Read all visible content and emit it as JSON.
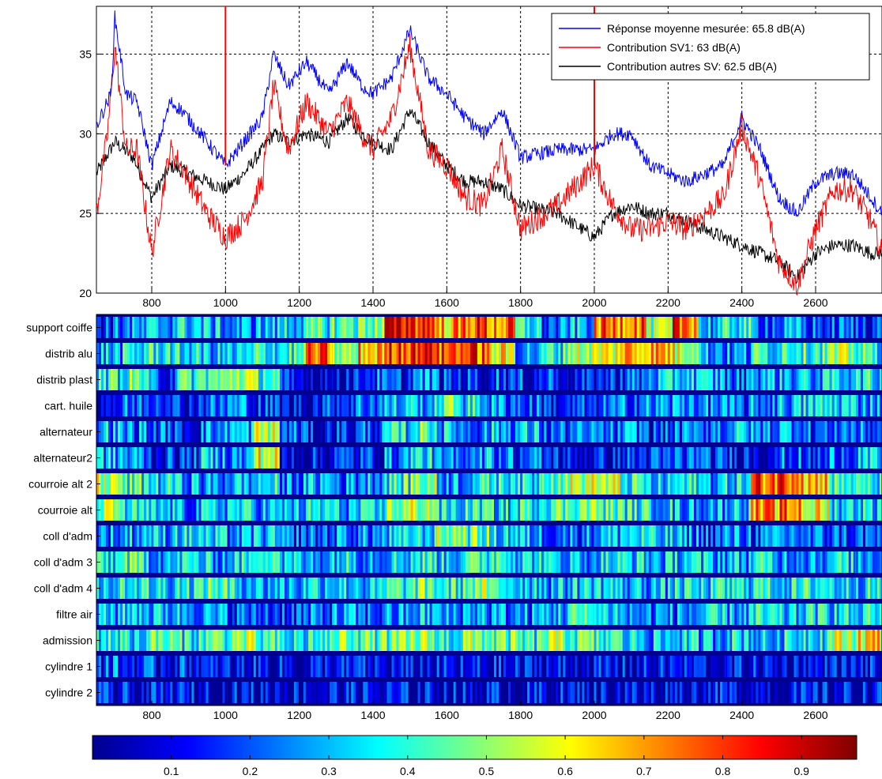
{
  "chart_data": [
    {
      "type": "line",
      "x_range": [
        650,
        2780
      ],
      "ylim": [
        20,
        38
      ],
      "x_ticks": [
        800,
        1000,
        1200,
        1400,
        1600,
        1800,
        2000,
        2200,
        2400,
        2600
      ],
      "y_ticks": [
        20,
        25,
        30,
        35
      ],
      "grid": true,
      "legend_position": "top-right",
      "series": [
        {
          "name": "Réponse moyenne mesurée: 65.8 dB(A)",
          "color": "#0000ff",
          "x": [
            650,
            690,
            700,
            730,
            760,
            800,
            850,
            880,
            950,
            1000,
            1050,
            1100,
            1130,
            1170,
            1220,
            1280,
            1330,
            1370,
            1400,
            1450,
            1500,
            1550,
            1600,
            1650,
            1700,
            1750,
            1800,
            1900,
            2000,
            2050,
            2100,
            2150,
            2200,
            2250,
            2300,
            2350,
            2400,
            2450,
            2500,
            2550,
            2600,
            2650,
            2700,
            2750,
            2780
          ],
          "y": [
            30.5,
            32.5,
            37.3,
            32.5,
            32.0,
            28.0,
            32.0,
            31.5,
            29.5,
            28.0,
            29.5,
            31.0,
            35.0,
            33.0,
            34.5,
            32.5,
            34.5,
            33.0,
            32.5,
            33.5,
            36.5,
            33.5,
            32.5,
            31.0,
            30.0,
            31.5,
            28.5,
            29.0,
            29.0,
            30.0,
            30.0,
            28.0,
            27.5,
            27.0,
            27.5,
            28.0,
            31.0,
            29.0,
            26.0,
            25.0,
            27.0,
            27.5,
            27.5,
            26.0,
            25.0
          ]
        },
        {
          "name": "Contribution SV1: 63 dB(A)",
          "color": "#ff0000",
          "x": [
            650,
            680,
            700,
            730,
            760,
            800,
            850,
            880,
            950,
            1000,
            1050,
            1100,
            1130,
            1170,
            1220,
            1280,
            1330,
            1370,
            1400,
            1450,
            1500,
            1550,
            1600,
            1650,
            1700,
            1750,
            1800,
            1900,
            2000,
            2050,
            2100,
            2150,
            2200,
            2250,
            2300,
            2350,
            2400,
            2450,
            2500,
            2550,
            2600,
            2650,
            2700,
            2750,
            2780
          ],
          "y": [
            25.0,
            30.0,
            35.5,
            29.0,
            29.0,
            22.5,
            29.0,
            28.0,
            25.0,
            23.5,
            24.5,
            27.0,
            33.0,
            29.0,
            32.0,
            30.0,
            32.0,
            30.0,
            29.0,
            31.0,
            35.5,
            29.0,
            28.0,
            26.0,
            25.5,
            29.0,
            24.0,
            25.5,
            28.0,
            25.5,
            24.0,
            24.0,
            24.5,
            24.0,
            25.0,
            26.0,
            30.5,
            27.0,
            22.0,
            20.5,
            24.0,
            26.5,
            26.5,
            24.5,
            22.5
          ]
        },
        {
          "name": "Contribution autres SV: 62.5 dB(A)",
          "color": "#000000",
          "x": [
            650,
            700,
            750,
            800,
            850,
            900,
            950,
            1000,
            1050,
            1100,
            1130,
            1170,
            1220,
            1280,
            1330,
            1370,
            1400,
            1450,
            1500,
            1550,
            1600,
            1650,
            1700,
            1750,
            1800,
            1900,
            2000,
            2050,
            2100,
            2150,
            2200,
            2250,
            2300,
            2350,
            2400,
            2450,
            2500,
            2550,
            2600,
            2650,
            2700,
            2750,
            2780
          ],
          "y": [
            27.5,
            29.5,
            28.5,
            26.0,
            28.0,
            27.5,
            27.0,
            26.5,
            27.5,
            29.0,
            30.0,
            29.5,
            30.0,
            29.5,
            31.0,
            30.0,
            29.5,
            29.0,
            31.5,
            29.5,
            28.0,
            27.0,
            27.0,
            26.5,
            25.5,
            25.0,
            23.5,
            25.0,
            25.5,
            25.0,
            25.0,
            24.5,
            24.0,
            23.5,
            23.0,
            22.5,
            22.0,
            21.0,
            22.5,
            23.0,
            23.0,
            22.5,
            22.5
          ]
        }
      ]
    },
    {
      "type": "heatmap",
      "x_range": [
        650,
        2780
      ],
      "x_ticks": [
        800,
        1000,
        1200,
        1400,
        1600,
        1800,
        2000,
        2200,
        2400,
        2600
      ],
      "rows": [
        {
          "label": "support coiffe",
          "values": [
            0.2,
            0.25,
            0.3,
            0.35,
            0.3,
            0.25,
            0.3,
            0.35,
            0.4,
            0.45,
            0.5,
            0.9,
            0.85,
            0.7,
            0.8,
            0.75,
            0.4,
            0.2,
            0.3,
            0.75,
            0.8,
            0.5,
            0.8,
            0.3,
            0.4,
            0.25,
            0.25,
            0.2,
            0.2,
            0.2
          ]
        },
        {
          "label": "distrib alu",
          "values": [
            0.3,
            0.35,
            0.4,
            0.35,
            0.3,
            0.3,
            0.4,
            0.4,
            0.75,
            0.5,
            0.7,
            0.85,
            0.9,
            0.8,
            0.8,
            0.6,
            0.3,
            0.4,
            0.55,
            0.6,
            0.7,
            0.7,
            0.6,
            0.3,
            0.25,
            0.4,
            0.45,
            0.45,
            0.5,
            0.4
          ]
        },
        {
          "label": "distrib plast",
          "values": [
            0.4,
            0.45,
            0.2,
            0.4,
            0.45,
            0.55,
            0.45,
            0.1,
            0.1,
            0.15,
            0.2,
            0.15,
            0.25,
            0.15,
            0.15,
            0.2,
            0.15,
            0.2,
            0.1,
            0.15,
            0.2,
            0.3,
            0.35,
            0.3,
            0.2,
            0.3,
            0.3,
            0.3,
            0.35,
            0.35
          ]
        },
        {
          "label": "cart. huile",
          "values": [
            0.15,
            0.2,
            0.25,
            0.15,
            0.2,
            0.25,
            0.15,
            0.1,
            0.15,
            0.2,
            0.25,
            0.3,
            0.3,
            0.45,
            0.35,
            0.25,
            0.2,
            0.15,
            0.15,
            0.2,
            0.25,
            0.25,
            0.3,
            0.25,
            0.2,
            0.25,
            0.3,
            0.35,
            0.35,
            0.3
          ]
        },
        {
          "label": "alternateur",
          "values": [
            0.3,
            0.25,
            0.2,
            0.15,
            0.25,
            0.3,
            0.55,
            0.2,
            0.1,
            0.15,
            0.2,
            0.35,
            0.45,
            0.3,
            0.25,
            0.3,
            0.3,
            0.2,
            0.2,
            0.2,
            0.25,
            0.15,
            0.2,
            0.25,
            0.3,
            0.25,
            0.3,
            0.2,
            0.25,
            0.2
          ]
        },
        {
          "label": "alternateur2",
          "values": [
            0.3,
            0.25,
            0.15,
            0.15,
            0.3,
            0.25,
            0.6,
            0.1,
            0.1,
            0.15,
            0.15,
            0.25,
            0.35,
            0.2,
            0.3,
            0.25,
            0.2,
            0.15,
            0.1,
            0.1,
            0.15,
            0.15,
            0.2,
            0.15,
            0.15,
            0.15,
            0.2,
            0.15,
            0.25,
            0.3
          ]
        },
        {
          "label": "courroie alt 2",
          "values": [
            0.55,
            0.4,
            0.35,
            0.3,
            0.25,
            0.3,
            0.35,
            0.25,
            0.3,
            0.25,
            0.3,
            0.4,
            0.5,
            0.3,
            0.35,
            0.4,
            0.35,
            0.5,
            0.55,
            0.55,
            0.4,
            0.3,
            0.35,
            0.3,
            0.35,
            0.8,
            0.85,
            0.7,
            0.4,
            0.35
          ]
        },
        {
          "label": "courroie alt",
          "values": [
            0.5,
            0.35,
            0.3,
            0.25,
            0.3,
            0.35,
            0.3,
            0.3,
            0.35,
            0.3,
            0.3,
            0.5,
            0.55,
            0.35,
            0.4,
            0.35,
            0.4,
            0.45,
            0.5,
            0.45,
            0.4,
            0.35,
            0.3,
            0.3,
            0.35,
            0.7,
            0.75,
            0.6,
            0.35,
            0.35
          ]
        },
        {
          "label": "coll d'adm",
          "values": [
            0.25,
            0.3,
            0.3,
            0.35,
            0.3,
            0.25,
            0.3,
            0.2,
            0.2,
            0.25,
            0.25,
            0.3,
            0.35,
            0.5,
            0.45,
            0.35,
            0.3,
            0.25,
            0.25,
            0.3,
            0.35,
            0.3,
            0.25,
            0.2,
            0.25,
            0.2,
            0.25,
            0.2,
            0.2,
            0.2
          ]
        },
        {
          "label": "coll d'adm 3",
          "values": [
            0.35,
            0.4,
            0.3,
            0.35,
            0.3,
            0.35,
            0.5,
            0.3,
            0.3,
            0.35,
            0.3,
            0.35,
            0.4,
            0.35,
            0.4,
            0.45,
            0.35,
            0.3,
            0.3,
            0.35,
            0.35,
            0.3,
            0.35,
            0.3,
            0.3,
            0.35,
            0.3,
            0.3,
            0.35,
            0.3
          ]
        },
        {
          "label": "coll d'adm 4",
          "values": [
            0.35,
            0.4,
            0.35,
            0.4,
            0.45,
            0.35,
            0.3,
            0.3,
            0.35,
            0.35,
            0.3,
            0.4,
            0.45,
            0.4,
            0.5,
            0.4,
            0.35,
            0.3,
            0.35,
            0.35,
            0.3,
            0.3,
            0.35,
            0.35,
            0.35,
            0.4,
            0.35,
            0.4,
            0.35,
            0.35
          ]
        },
        {
          "label": "filtre air",
          "values": [
            0.3,
            0.35,
            0.3,
            0.3,
            0.25,
            0.2,
            0.2,
            0.2,
            0.2,
            0.25,
            0.2,
            0.25,
            0.3,
            0.25,
            0.3,
            0.25,
            0.25,
            0.3,
            0.4,
            0.35,
            0.25,
            0.25,
            0.25,
            0.3,
            0.3,
            0.35,
            0.3,
            0.35,
            0.35,
            0.35
          ]
        },
        {
          "label": "admission",
          "values": [
            0.4,
            0.35,
            0.45,
            0.4,
            0.45,
            0.5,
            0.4,
            0.35,
            0.4,
            0.5,
            0.45,
            0.45,
            0.5,
            0.4,
            0.5,
            0.45,
            0.4,
            0.5,
            0.45,
            0.4,
            0.35,
            0.3,
            0.35,
            0.3,
            0.35,
            0.3,
            0.35,
            0.4,
            0.55,
            0.65
          ]
        },
        {
          "label": "cylindre 1",
          "values": [
            0.2,
            0.15,
            0.15,
            0.15,
            0.1,
            0.1,
            0.1,
            0.1,
            0.1,
            0.1,
            0.1,
            0.1,
            0.1,
            0.1,
            0.1,
            0.1,
            0.1,
            0.1,
            0.1,
            0.1,
            0.1,
            0.1,
            0.1,
            0.1,
            0.1,
            0.1,
            0.1,
            0.1,
            0.1,
            0.1
          ]
        },
        {
          "label": "cylindre 2",
          "values": [
            0.1,
            0.1,
            0.1,
            0.1,
            0.1,
            0.1,
            0.1,
            0.1,
            0.1,
            0.1,
            0.1,
            0.1,
            0.1,
            0.1,
            0.1,
            0.1,
            0.1,
            0.1,
            0.1,
            0.1,
            0.1,
            0.1,
            0.1,
            0.1,
            0.1,
            0.1,
            0.1,
            0.1,
            0.1,
            0.1
          ]
        }
      ],
      "colorbar": {
        "range": [
          0,
          0.97
        ],
        "ticks": [
          "0.1",
          "0.2",
          "0.3",
          "0.4",
          "0.5",
          "0.6",
          "0.7",
          "0.8",
          "0.9"
        ],
        "tick_values": [
          0.1,
          0.2,
          0.3,
          0.4,
          0.5,
          0.6,
          0.7,
          0.8,
          0.9
        ],
        "colormap": "jet"
      }
    }
  ]
}
